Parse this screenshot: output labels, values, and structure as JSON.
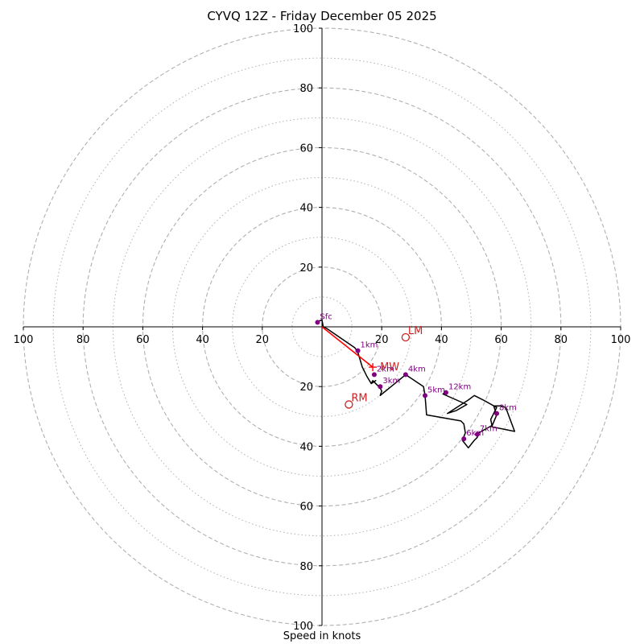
{
  "chart_data": {
    "type": "hodograph",
    "title": "CYVQ 12Z - Friday December 05 2025",
    "xlabel": "Speed in knots",
    "units": "knots",
    "xlim": [
      -100,
      100
    ],
    "ylim": [
      -100,
      100
    ],
    "grid": {
      "major_rings": [
        20,
        40,
        60,
        80,
        100
      ],
      "minor_rings": [
        10,
        30,
        50,
        70,
        90
      ]
    },
    "x_tick_labels": [
      "100",
      "80",
      "60",
      "40",
      "20",
      "20",
      "40",
      "60",
      "80",
      "100"
    ],
    "x_tick_values": [
      -100,
      -80,
      -60,
      -40,
      -20,
      20,
      40,
      60,
      80,
      100
    ],
    "y_tick_labels": [
      "100",
      "80",
      "60",
      "40",
      "20",
      "20",
      "40",
      "60",
      "80",
      "100"
    ],
    "y_tick_values": [
      100,
      80,
      60,
      40,
      20,
      -20,
      -40,
      -60,
      -80,
      -100
    ],
    "trace": {
      "u": [
        -1.5,
        0.0,
        0.4,
        1.5,
        11.0,
        12.0,
        13.5,
        15.0,
        16.5,
        18.0,
        16.5,
        17.0,
        18.5,
        19.5,
        20.0,
        19.5,
        28.0,
        34.0,
        34.5,
        35.0,
        46.5,
        47.5,
        48.0,
        47.0,
        49.0,
        51.0,
        52.0,
        52.5,
        57.0,
        58.5,
        57.5,
        60.0,
        61.5,
        64.5,
        62.0,
        57.0,
        56.5,
        57.5,
        58.5,
        54.0,
        51.0,
        49.0,
        42.0,
        45.0,
        48.5,
        40.5,
        41.5
      ],
      "v": [
        1.8,
        2.3,
        0.0,
        -0.5,
        -7.0,
        -8.5,
        -13.5,
        -16.5,
        -19.0,
        -18.0,
        -19.0,
        -18.0,
        -19.5,
        -20.5,
        -21.5,
        -23.0,
        -16.0,
        -20.0,
        -23.0,
        -29.5,
        -31.5,
        -32.5,
        -35.5,
        -38.0,
        -40.5,
        -38.0,
        -37.0,
        -35.5,
        -33.0,
        -29.5,
        -26.5,
        -26.5,
        -27.0,
        -35.0,
        -34.5,
        -33.5,
        -31.0,
        -29.0,
        -27.0,
        -24.5,
        -23.0,
        -24.5,
        -29.0,
        -28.0,
        -26.0,
        -22.5,
        -21.5
      ]
    },
    "height_points": [
      {
        "label": "Sfc",
        "u": -1.5,
        "v": 1.5
      },
      {
        "label": "1km",
        "u": 12.0,
        "v": -8.0
      },
      {
        "label": "2km",
        "u": 17.5,
        "v": -16.0
      },
      {
        "label": "3km",
        "u": 19.5,
        "v": -20.0
      },
      {
        "label": "4km",
        "u": 28.0,
        "v": -16.0
      },
      {
        "label": "5km",
        "u": 34.5,
        "v": -23.0
      },
      {
        "label": "6km",
        "u": 47.5,
        "v": -37.5
      },
      {
        "label": "7km",
        "u": 52.0,
        "v": -36.0
      },
      {
        "label": "8km",
        "u": 58.5,
        "v": -29.0
      },
      {
        "label": "12km",
        "u": 41.5,
        "v": -22.0
      }
    ],
    "mean_wind_vector": {
      "label": "MW",
      "u": 17.0,
      "v": -13.5
    },
    "storm_motions": [
      {
        "label": "LM",
        "u": 28.0,
        "v": -3.5
      },
      {
        "label": "RM",
        "u": 9.0,
        "v": -26.0
      }
    ],
    "colors": {
      "trace": "#000000",
      "height_points": "#800080",
      "mean_wind": "#ff0000",
      "storm_motion": "#cc2222",
      "grid": "#b0b0b0",
      "axes": "#000000"
    }
  }
}
